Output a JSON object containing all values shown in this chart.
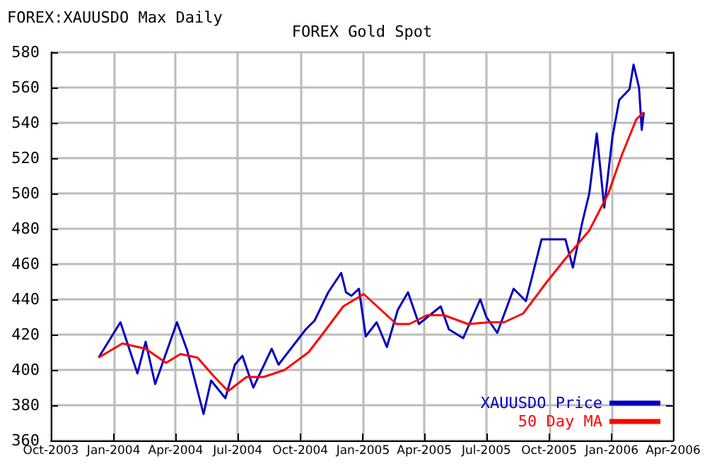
{
  "chart_data": {
    "type": "line",
    "title": "FOREX Gold Spot",
    "subtitle": "FOREX:XAUUSDO Max Daily",
    "xlim": [
      "2003-10-01",
      "2006-04-01"
    ],
    "xticks": [
      {
        "value": "2003-10-01",
        "label": "Oct-2003"
      },
      {
        "value": "2004-01-01",
        "label": "Jan-2004"
      },
      {
        "value": "2004-04-01",
        "label": "Apr-2004"
      },
      {
        "value": "2004-07-01",
        "label": "Jul-2004"
      },
      {
        "value": "2004-10-01",
        "label": "Oct-2004"
      },
      {
        "value": "2005-01-01",
        "label": "Jan-2005"
      },
      {
        "value": "2005-04-01",
        "label": "Apr-2005"
      },
      {
        "value": "2005-07-01",
        "label": "Jul-2005"
      },
      {
        "value": "2005-10-01",
        "label": "Oct-2005"
      },
      {
        "value": "2006-01-01",
        "label": "Jan-2006"
      },
      {
        "value": "2006-04-01",
        "label": "Apr-2006"
      }
    ],
    "ylim": [
      360,
      580
    ],
    "yticks": [
      360,
      380,
      400,
      420,
      440,
      460,
      480,
      500,
      520,
      540,
      560,
      580
    ],
    "grid": true,
    "legend": "bottom right",
    "marker": "none",
    "line_style": "solid",
    "series": [
      {
        "name": "XAUUSDO Price",
        "color": "#0000c0",
        "x": [
          "2003-12-10",
          "2004-01-11",
          "2004-02-05",
          "2004-02-17",
          "2004-03-02",
          "2004-04-03",
          "2004-04-18",
          "2004-05-12",
          "2004-05-23",
          "2004-06-13",
          "2004-06-27",
          "2004-07-08",
          "2004-07-24",
          "2004-08-20",
          "2004-08-30",
          "2004-10-09",
          "2004-10-22",
          "2004-11-11",
          "2004-11-30",
          "2004-12-07",
          "2004-12-15",
          "2004-12-26",
          "2005-01-05",
          "2005-01-21",
          "2005-02-05",
          "2005-02-21",
          "2005-03-08",
          "2005-03-24",
          "2005-04-25",
          "2005-05-07",
          "2005-05-28",
          "2005-06-22",
          "2005-07-01",
          "2005-07-17",
          "2005-08-10",
          "2005-08-28",
          "2005-09-20",
          "2005-10-25",
          "2005-11-05",
          "2005-11-19",
          "2005-11-29",
          "2005-12-10",
          "2005-12-21",
          "2006-01-02",
          "2006-01-12",
          "2006-01-27",
          "2006-02-02",
          "2006-02-10",
          "2006-02-14",
          "2006-02-17"
        ],
        "values": [
          407,
          427,
          398,
          416,
          392,
          427,
          411,
          375,
          394,
          384,
          403,
          408,
          390,
          412,
          403,
          423,
          428,
          444,
          455,
          444,
          442,
          446,
          419,
          427,
          413,
          434,
          444,
          426,
          436,
          423,
          418,
          440,
          430,
          421,
          446,
          439,
          474,
          474,
          458,
          484,
          500,
          534,
          492,
          532,
          553,
          559,
          573,
          560,
          536,
          546
        ]
      },
      {
        "name": "50 Day MA",
        "color": "#ff0000",
        "x": [
          "2003-12-10",
          "2004-01-14",
          "2004-02-17",
          "2004-03-18",
          "2004-04-08",
          "2004-05-03",
          "2004-05-28",
          "2004-06-17",
          "2004-07-14",
          "2004-08-08",
          "2004-09-08",
          "2004-10-13",
          "2004-11-02",
          "2004-12-03",
          "2005-01-02",
          "2005-02-19",
          "2005-03-10",
          "2005-04-05",
          "2005-04-30",
          "2005-06-04",
          "2005-07-06",
          "2005-07-27",
          "2005-08-24",
          "2005-09-28",
          "2005-10-25",
          "2005-11-29",
          "2005-12-27",
          "2006-01-16",
          "2006-02-06",
          "2006-02-17"
        ],
        "values": [
          407,
          415,
          412,
          404,
          409,
          407,
          396,
          388,
          396,
          396,
          400,
          410,
          420,
          436,
          443,
          426,
          426,
          431,
          431,
          426,
          427,
          427,
          432,
          450,
          463,
          479,
          500,
          522,
          542,
          546
        ]
      }
    ]
  }
}
